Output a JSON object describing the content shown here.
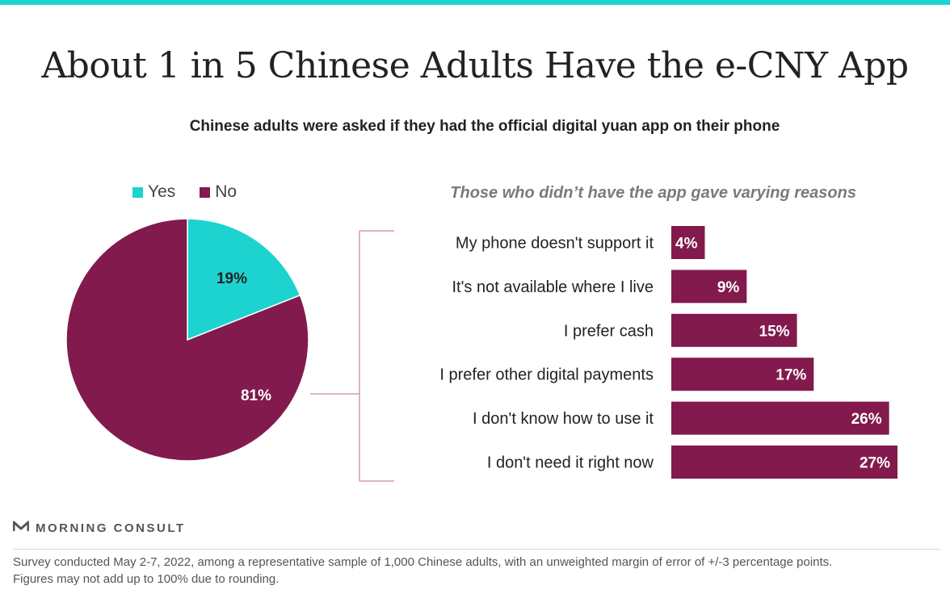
{
  "title": "About 1 in 5 Chinese Adults Have the e-CNY App",
  "subtitle": "Chinese adults were asked if they had the official digital yuan app on their phone",
  "colors": {
    "teal": "#1dd3cf",
    "maroon": "#821a4d",
    "top_bar": "#1dd3cf"
  },
  "legend": [
    {
      "label": "Yes",
      "color": "#1dd3cf"
    },
    {
      "label": "No",
      "color": "#821a4d"
    }
  ],
  "brand": {
    "name": "MORNING CONSULT",
    "icon": "morning-consult-logo-icon"
  },
  "footnote": {
    "line1": "Survey conducted May 2-7, 2022, among a representative sample of 1,000 Chinese adults, with an unweighted margin of error of +/-3 percentage points.",
    "line2": "Figures may not add up to 100% due to rounding."
  },
  "chart_data": [
    {
      "type": "pie",
      "categories": [
        "Yes",
        "No"
      ],
      "values": [
        19,
        81
      ],
      "labels": [
        "19%",
        "81%"
      ],
      "colors": [
        "#1dd3cf",
        "#821a4d"
      ]
    },
    {
      "type": "bar",
      "orientation": "horizontal",
      "title": "Those who didn’t have the app gave varying reasons",
      "categories": [
        "My phone doesn't support it",
        "It's not available where I live",
        "I prefer cash",
        "I prefer other digital payments",
        "I don't know how to use it",
        "I don't need it right now"
      ],
      "values": [
        4,
        9,
        15,
        17,
        26,
        27
      ],
      "labels": [
        "4%",
        "9%",
        "15%",
        "17%",
        "26%",
        "27%"
      ],
      "xlim": [
        0,
        27
      ]
    }
  ]
}
